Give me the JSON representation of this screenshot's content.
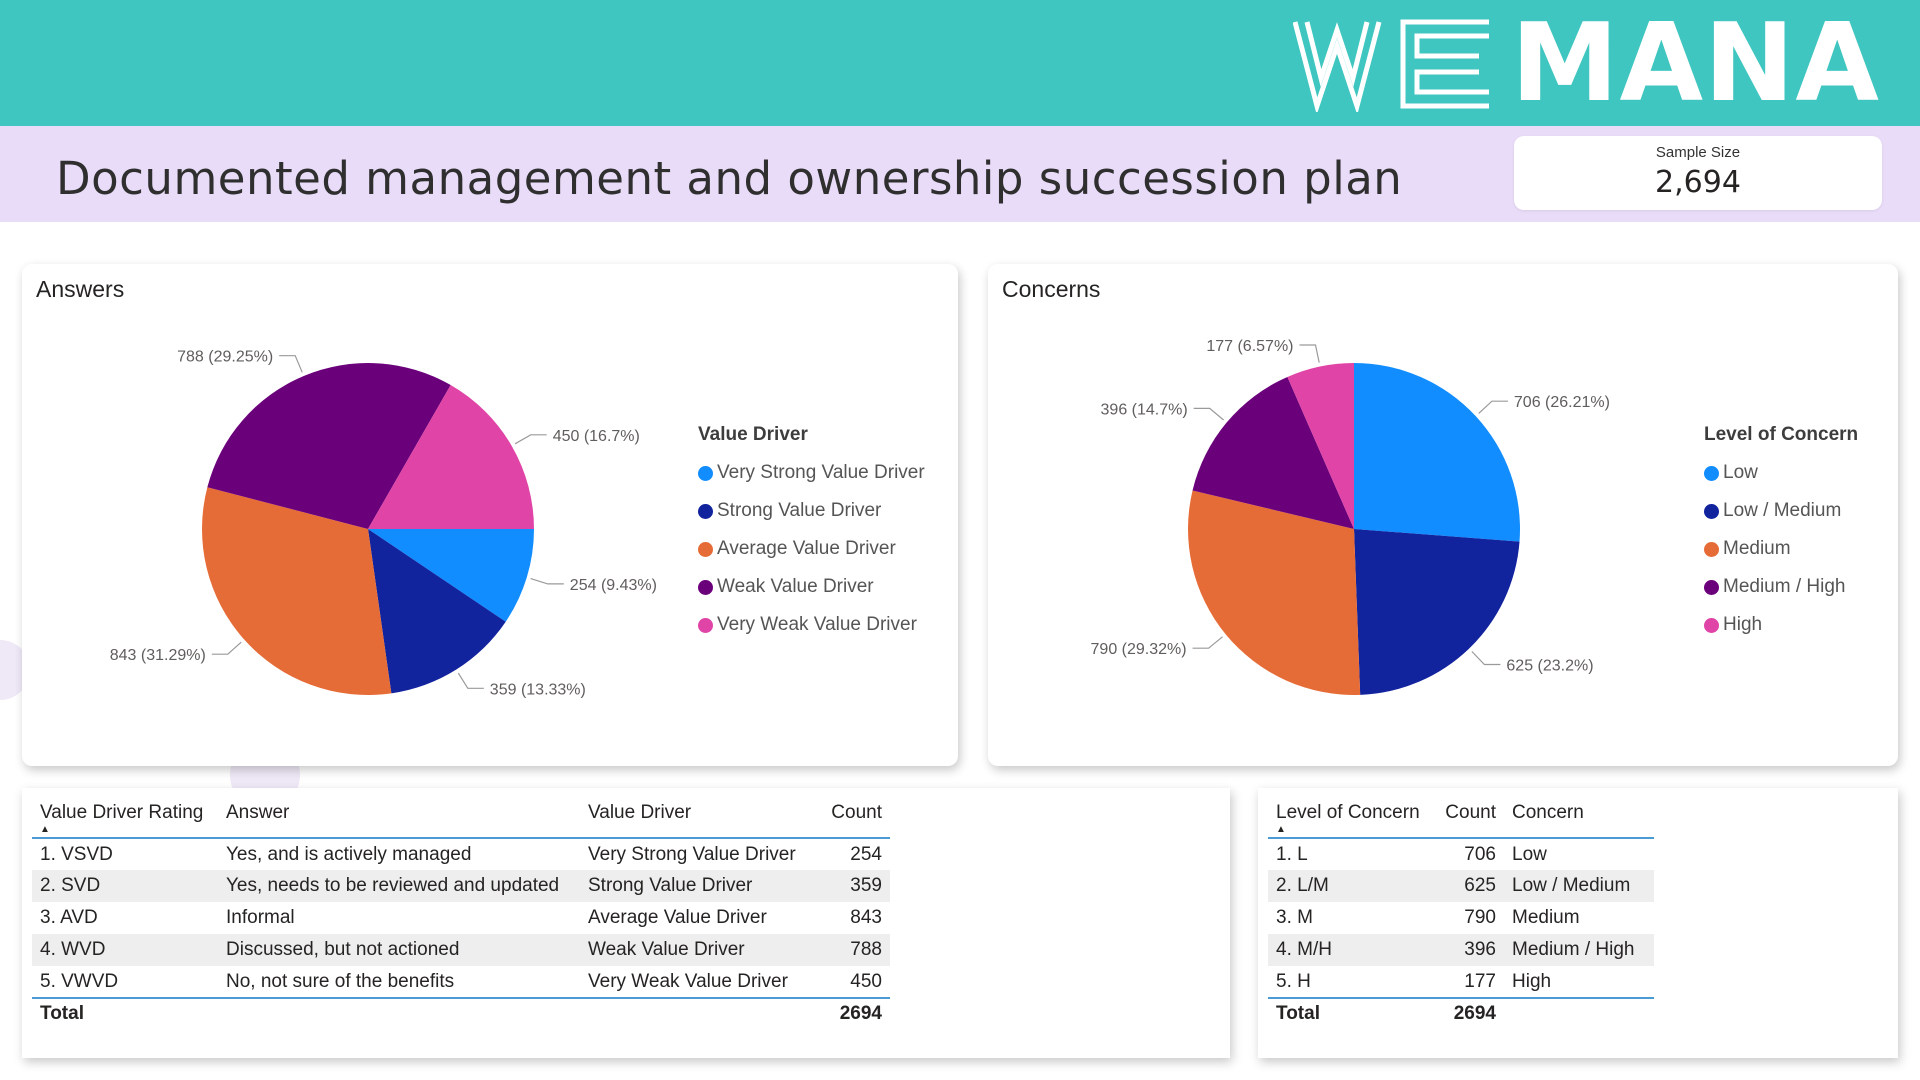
{
  "header": {
    "brand": "MANA",
    "brand_logo_letters": "WE",
    "title": "Documented management and ownership succession plan",
    "sample_size_label": "Sample Size",
    "sample_size_value": "2,694"
  },
  "colors": {
    "teal_banner": "#40c6c0",
    "lavender_band": "#e9dcf8",
    "very_strong": "#118dff",
    "strong": "#12239e",
    "average": "#e66c37",
    "weak": "#6b007b",
    "very_weak": "#e044a7"
  },
  "chart_data": [
    {
      "type": "pie",
      "title": "Answers",
      "legend_title": "Value Driver",
      "legend_position": "right",
      "slices": [
        {
          "label": "Very Strong Value Driver",
          "value": 254,
          "percent": 9.43,
          "data_label": "254 (9.43%)",
          "color": "#118dff"
        },
        {
          "label": "Strong Value Driver",
          "value": 359,
          "percent": 13.33,
          "data_label": "359 (13.33%)",
          "color": "#12239e"
        },
        {
          "label": "Average Value Driver",
          "value": 843,
          "percent": 31.29,
          "data_label": "843 (31.29%)",
          "color": "#e66c37"
        },
        {
          "label": "Weak Value Driver",
          "value": 788,
          "percent": 29.25,
          "data_label": "788 (29.25%)",
          "color": "#6b007b"
        },
        {
          "label": "Very Weak Value Driver",
          "value": 450,
          "percent": 16.7,
          "data_label": "450 (16.7%)",
          "color": "#e044a7"
        }
      ]
    },
    {
      "type": "pie",
      "title": "Concerns",
      "legend_title": "Level of Concern",
      "legend_position": "right",
      "slices": [
        {
          "label": "Low",
          "value": 706,
          "percent": 26.21,
          "data_label": "706 (26.21%)",
          "color": "#118dff"
        },
        {
          "label": "Low / Medium",
          "value": 625,
          "percent": 23.2,
          "data_label": "625 (23.2%)",
          "color": "#12239e"
        },
        {
          "label": "Medium",
          "value": 790,
          "percent": 29.32,
          "data_label": "790 (29.32%)",
          "color": "#e66c37"
        },
        {
          "label": "Medium / High",
          "value": 396,
          "percent": 14.7,
          "data_label": "396 (14.7%)",
          "color": "#6b007b"
        },
        {
          "label": "High",
          "value": 177,
          "percent": 6.57,
          "data_label": "177 (6.57%)",
          "color": "#e044a7"
        }
      ]
    }
  ],
  "answers_table": {
    "headers": [
      "Value Driver Rating",
      "Answer",
      "Value Driver",
      "Count"
    ],
    "rows": [
      [
        "1. VSVD",
        "Yes, and is actively managed",
        "Very Strong Value Driver",
        "254"
      ],
      [
        "2. SVD",
        "Yes, needs to be reviewed and updated",
        "Strong Value Driver",
        "359"
      ],
      [
        "3. AVD",
        "Informal",
        "Average Value Driver",
        "843"
      ],
      [
        "4. WVD",
        "Discussed, but not actioned",
        "Weak Value Driver",
        "788"
      ],
      [
        "5. VWVD",
        "No, not sure of the benefits",
        "Very Weak Value Driver",
        "450"
      ]
    ],
    "total_label": "Total",
    "total_value": "2694"
  },
  "concerns_table": {
    "headers": [
      "Level of Concern",
      "Count",
      "Concern"
    ],
    "rows": [
      [
        "1. L",
        "706",
        "Low"
      ],
      [
        "2. L/M",
        "625",
        "Low / Medium"
      ],
      [
        "3. M",
        "790",
        "Medium"
      ],
      [
        "4. M/H",
        "396",
        "Medium / High"
      ],
      [
        "5. H",
        "177",
        "High"
      ]
    ],
    "total_label": "Total",
    "total_value": "2694"
  }
}
